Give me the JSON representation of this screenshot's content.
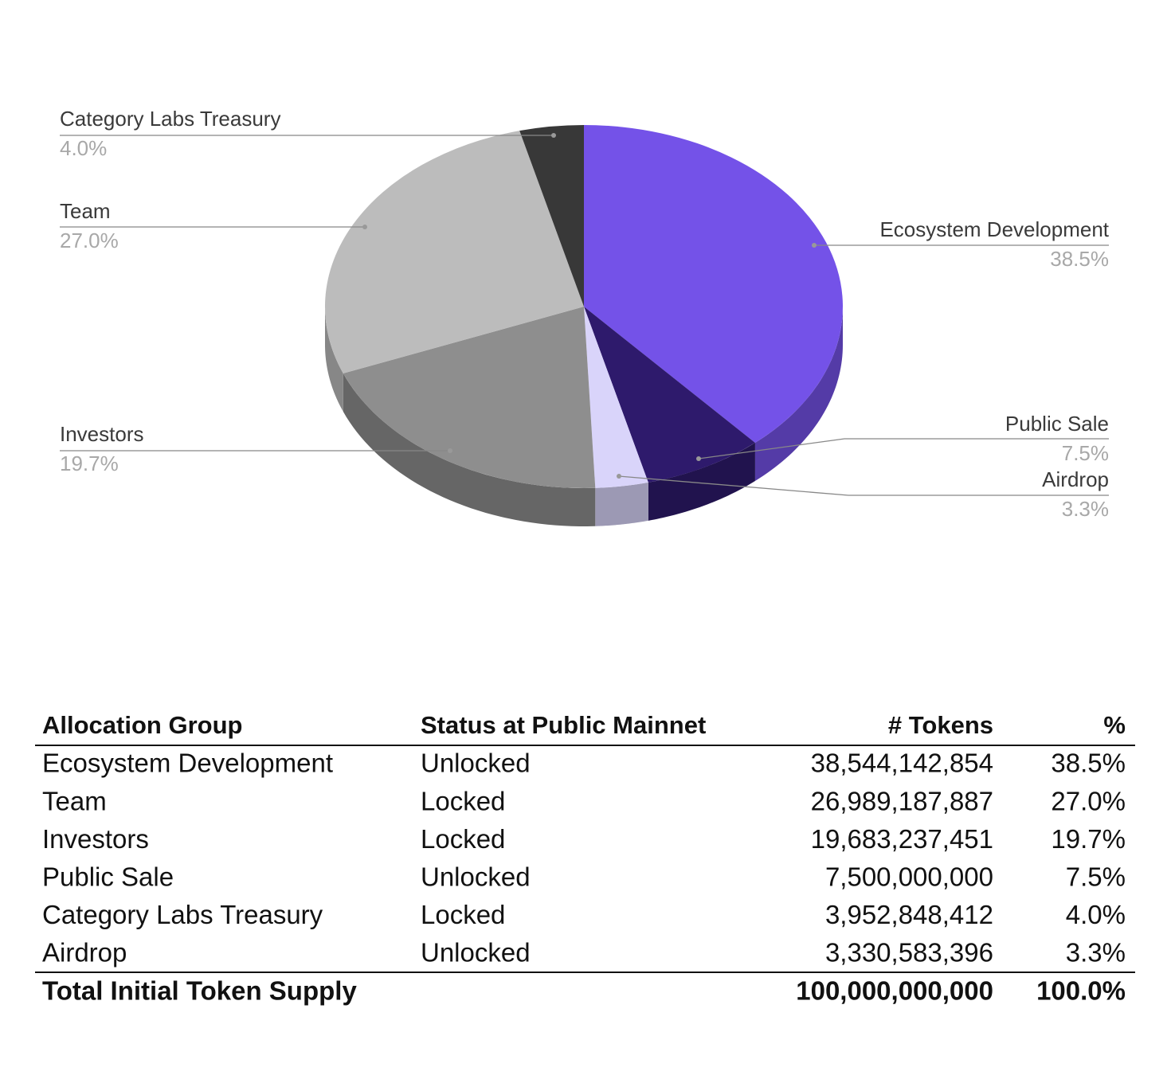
{
  "chart_data": {
    "type": "pie",
    "categories": [
      "Ecosystem Development",
      "Public Sale",
      "Airdrop",
      "Investors",
      "Team",
      "Category Labs Treasury"
    ],
    "values": [
      38.5,
      7.5,
      3.3,
      19.7,
      27,
      4
    ],
    "value_labels": [
      "38.5%",
      "7.5%",
      "3.3%",
      "19.7%",
      "27.0%",
      "4.0%"
    ],
    "colors": [
      "#7452e8",
      "#2e1a6c",
      "#d9d4fa",
      "#8e8e8e",
      "#bcbcbc",
      "#383838"
    ]
  },
  "table": {
    "columns": [
      "Allocation Group",
      "Status at Public Mainnet",
      "# Tokens",
      "%"
    ],
    "rows": [
      [
        "Ecosystem Development",
        "Unlocked",
        "38,544,142,854",
        "38.5%"
      ],
      [
        "Team",
        "Locked",
        "26,989,187,887",
        "27.0%"
      ],
      [
        "Investors",
        "Locked",
        "19,683,237,451",
        "19.7%"
      ],
      [
        "Public Sale",
        "Unlocked",
        "7,500,000,000",
        "7.5%"
      ],
      [
        "Category Labs Treasury",
        "Locked",
        "3,952,848,412",
        "4.0%"
      ],
      [
        "Airdrop",
        "Unlocked",
        "3,330,583,396",
        "3.3%"
      ]
    ],
    "total": [
      "Total Initial Token Supply",
      "100,000,000,000",
      "100.0%"
    ]
  }
}
